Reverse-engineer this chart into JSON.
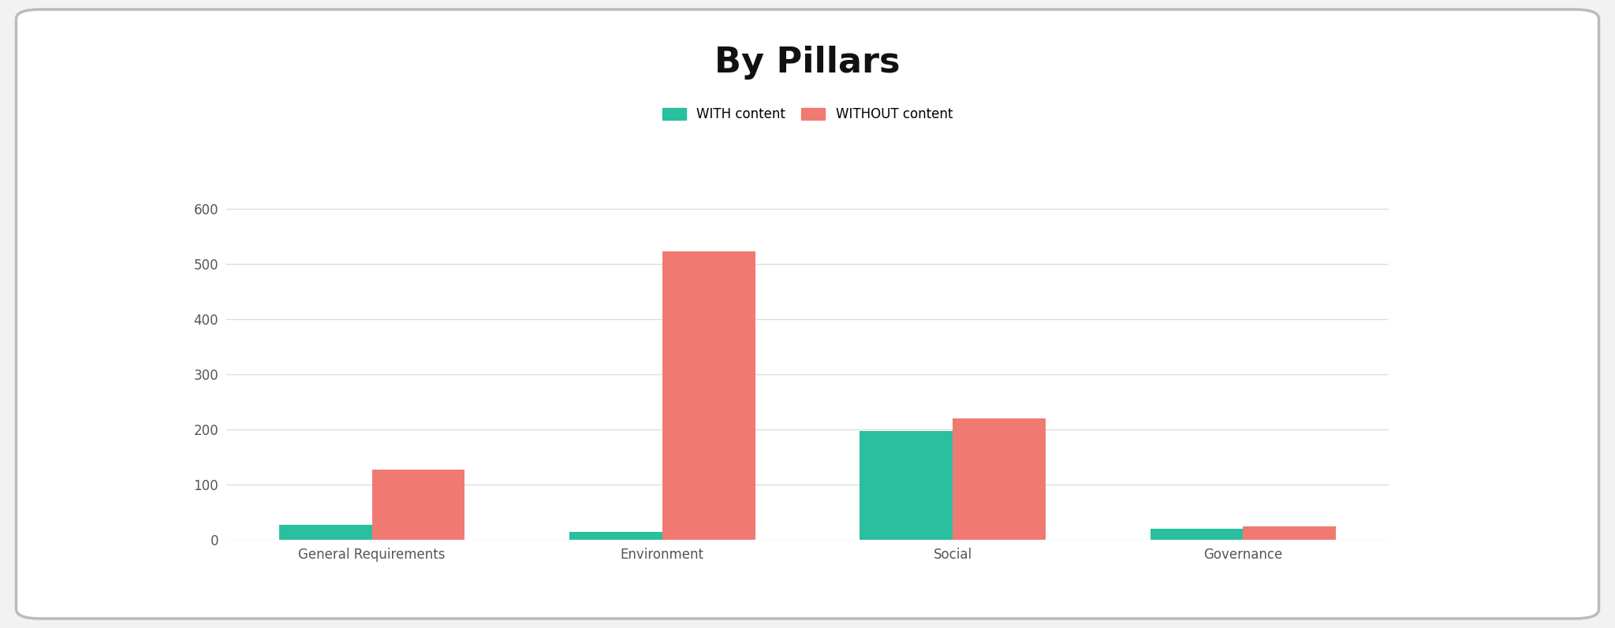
{
  "title": "By Pillars",
  "categories": [
    "General Requirements",
    "Environment",
    "Social",
    "Governance"
  ],
  "with_content": [
    28,
    15,
    197,
    20
  ],
  "without_content": [
    127,
    523,
    220,
    25
  ],
  "color_with": "#2abf9e",
  "color_without": "#f07a72",
  "legend_with": "WITH content",
  "legend_without": "WITHOUT content",
  "ylim": [
    0,
    660
  ],
  "yticks": [
    0,
    100,
    200,
    300,
    400,
    500,
    600
  ],
  "title_fontsize": 32,
  "tick_fontsize": 12,
  "legend_fontsize": 12,
  "bar_width": 0.32,
  "background_color": "#f2f2f2",
  "card_color": "#ffffff",
  "grid_color": "#dddddd",
  "border_color": "#bbbbbb"
}
